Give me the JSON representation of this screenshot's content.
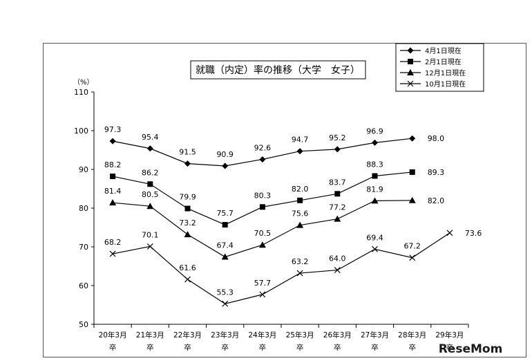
{
  "chart_data": {
    "type": "line",
    "title": "就職（内定）率の推移（大学　女子）",
    "ylabel": "（%）",
    "ylim": [
      50,
      110
    ],
    "yticks": [
      50,
      60,
      70,
      80,
      90,
      100,
      110
    ],
    "grid": false,
    "legend_position": "top-right",
    "categories": [
      {
        "line1": "20年3月",
        "line2": "卒"
      },
      {
        "line1": "21年3月",
        "line2": "卒"
      },
      {
        "line1": "22年3月",
        "line2": "卒"
      },
      {
        "line1": "23年3月",
        "line2": "卒"
      },
      {
        "line1": "24年3月",
        "line2": "卒"
      },
      {
        "line1": "25年3月",
        "line2": "卒"
      },
      {
        "line1": "26年3月",
        "line2": "卒"
      },
      {
        "line1": "27年3月",
        "line2": "卒"
      },
      {
        "line1": "28年3月",
        "line2": "卒"
      },
      {
        "line1": "29年3月",
        "line2": "卒"
      }
    ],
    "series": [
      {
        "name": "4月1日現在",
        "marker": "diamond",
        "values": [
          97.3,
          95.4,
          91.5,
          90.9,
          92.6,
          94.7,
          95.2,
          96.9,
          98.0,
          null
        ],
        "labels": [
          "97.3",
          "95.4",
          "91.5",
          "90.9",
          "92.6",
          "94.7",
          "95.2",
          "96.9",
          "98.0",
          ""
        ]
      },
      {
        "name": "2月1日現在",
        "marker": "square",
        "values": [
          88.2,
          86.2,
          79.9,
          75.7,
          80.3,
          82.0,
          83.7,
          88.3,
          89.3,
          null
        ],
        "labels": [
          "88.2",
          "86.2",
          "79.9",
          "75.7",
          "80.3",
          "82.0",
          "83.7",
          "88.3",
          "89.3",
          ""
        ]
      },
      {
        "name": "12月1日現在",
        "marker": "triangle",
        "values": [
          81.4,
          80.5,
          73.2,
          67.4,
          70.5,
          75.6,
          77.2,
          81.9,
          82.0,
          null
        ],
        "labels": [
          "81.4",
          "80.5",
          "73.2",
          "67.4",
          "70.5",
          "75.6",
          "77.2",
          "81.9",
          "82.0",
          ""
        ]
      },
      {
        "name": "10月1日現在",
        "marker": "x",
        "values": [
          68.2,
          70.1,
          61.6,
          55.3,
          57.7,
          63.2,
          64.0,
          69.4,
          67.2,
          73.6
        ],
        "labels": [
          "68.2",
          "70.1",
          "61.6",
          "55.3",
          "57.7",
          "63.2",
          "64.0",
          "69.4",
          "67.2",
          "73.6"
        ]
      }
    ]
  },
  "watermark": {
    "text": "ReseMom",
    "color": "#1a1a1a"
  }
}
